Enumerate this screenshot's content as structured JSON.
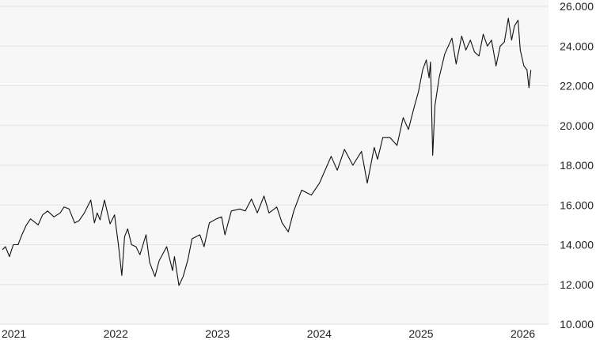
{
  "chart_data": {
    "type": "line",
    "title": "",
    "xlabel": "",
    "ylabel": "",
    "ylim": [
      10000,
      26000
    ],
    "yticks": [
      10000,
      12000,
      14000,
      16000,
      18000,
      20000,
      22000,
      24000,
      26000
    ],
    "ytick_labels": [
      "10.000",
      "12.000",
      "14.000",
      "16.000",
      "18.000",
      "20.000",
      "22.000",
      "24.000",
      "26.000"
    ],
    "xticks": [
      "2021",
      "2022",
      "2023",
      "2024",
      "2025",
      "2026"
    ],
    "xlim": [
      "2021-01-01",
      "2026-05-10"
    ],
    "grid": "horizontal",
    "colors": {
      "line": "#111111",
      "plot_bg": "#f7f7f7",
      "grid": "#e2e2e2"
    },
    "series": [
      {
        "points": [
          [
            "2021-01-04",
            13750
          ],
          [
            "2021-01-15",
            13900
          ],
          [
            "2021-01-29",
            13400
          ],
          [
            "2021-02-12",
            14000
          ],
          [
            "2021-03-01",
            14000
          ],
          [
            "2021-03-15",
            14500
          ],
          [
            "2021-03-31",
            15000
          ],
          [
            "2021-04-15",
            15300
          ],
          [
            "2021-05-12",
            15000
          ],
          [
            "2021-05-28",
            15500
          ],
          [
            "2021-06-15",
            15700
          ],
          [
            "2021-07-08",
            15400
          ],
          [
            "2021-07-30",
            15600
          ],
          [
            "2021-08-13",
            15900
          ],
          [
            "2021-08-31",
            15800
          ],
          [
            "2021-09-20",
            15100
          ],
          [
            "2021-10-05",
            15200
          ],
          [
            "2021-10-25",
            15600
          ],
          [
            "2021-11-17",
            16250
          ],
          [
            "2021-11-30",
            15100
          ],
          [
            "2021-12-10",
            15600
          ],
          [
            "2021-12-20",
            15250
          ],
          [
            "2022-01-05",
            16250
          ],
          [
            "2022-01-25",
            15050
          ],
          [
            "2022-02-10",
            15500
          ],
          [
            "2022-02-24",
            14000
          ],
          [
            "2022-03-08",
            12450
          ],
          [
            "2022-03-18",
            14400
          ],
          [
            "2022-03-29",
            14800
          ],
          [
            "2022-04-12",
            14000
          ],
          [
            "2022-04-28",
            13900
          ],
          [
            "2022-05-12",
            13500
          ],
          [
            "2022-06-03",
            14500
          ],
          [
            "2022-06-16",
            13100
          ],
          [
            "2022-07-05",
            12400
          ],
          [
            "2022-07-20",
            13200
          ],
          [
            "2022-08-16",
            13900
          ],
          [
            "2022-09-06",
            12700
          ],
          [
            "2022-09-13",
            13400
          ],
          [
            "2022-09-29",
            11950
          ],
          [
            "2022-10-14",
            12400
          ],
          [
            "2022-10-31",
            13250
          ],
          [
            "2022-11-15",
            14300
          ],
          [
            "2022-12-13",
            14500
          ],
          [
            "2022-12-28",
            13900
          ],
          [
            "2023-01-16",
            15100
          ],
          [
            "2023-02-10",
            15300
          ],
          [
            "2023-03-01",
            15400
          ],
          [
            "2023-03-13",
            14500
          ],
          [
            "2023-04-05",
            15700
          ],
          [
            "2023-05-05",
            15800
          ],
          [
            "2023-05-25",
            15700
          ],
          [
            "2023-06-16",
            16300
          ],
          [
            "2023-07-07",
            15600
          ],
          [
            "2023-07-31",
            16450
          ],
          [
            "2023-08-18",
            15600
          ],
          [
            "2023-09-15",
            15900
          ],
          [
            "2023-10-04",
            15100
          ],
          [
            "2023-10-26",
            14650
          ],
          [
            "2023-11-15",
            15700
          ],
          [
            "2023-12-13",
            16750
          ],
          [
            "2024-01-17",
            16500
          ],
          [
            "2024-02-15",
            17100
          ],
          [
            "2024-03-08",
            17800
          ],
          [
            "2024-03-28",
            18450
          ],
          [
            "2024-04-19",
            17750
          ],
          [
            "2024-05-15",
            18800
          ],
          [
            "2024-06-14",
            18000
          ],
          [
            "2024-07-15",
            18700
          ],
          [
            "2024-08-05",
            17100
          ],
          [
            "2024-08-30",
            18900
          ],
          [
            "2024-09-11",
            18300
          ],
          [
            "2024-09-30",
            19400
          ],
          [
            "2024-10-25",
            19400
          ],
          [
            "2024-11-20",
            19000
          ],
          [
            "2024-12-12",
            20400
          ],
          [
            "2024-12-31",
            19800
          ],
          [
            "2025-01-20",
            20900
          ],
          [
            "2025-02-05",
            21700
          ],
          [
            "2025-02-20",
            22800
          ],
          [
            "2025-03-05",
            23300
          ],
          [
            "2025-03-15",
            22400
          ],
          [
            "2025-03-20",
            23200
          ],
          [
            "2025-03-28",
            18500
          ],
          [
            "2025-04-05",
            21000
          ],
          [
            "2025-04-20",
            22400
          ],
          [
            "2025-05-10",
            23600
          ],
          [
            "2025-06-05",
            24400
          ],
          [
            "2025-06-20",
            23100
          ],
          [
            "2025-07-10",
            24500
          ],
          [
            "2025-07-25",
            23800
          ],
          [
            "2025-08-10",
            24300
          ],
          [
            "2025-08-25",
            23700
          ],
          [
            "2025-09-10",
            23500
          ],
          [
            "2025-09-25",
            24600
          ],
          [
            "2025-10-10",
            24000
          ],
          [
            "2025-10-25",
            24300
          ],
          [
            "2025-11-10",
            23000
          ],
          [
            "2025-11-25",
            24000
          ],
          [
            "2025-12-10",
            24200
          ],
          [
            "2025-12-24",
            25400
          ],
          [
            "2026-01-05",
            24300
          ],
          [
            "2026-01-15",
            25000
          ],
          [
            "2026-01-28",
            25300
          ],
          [
            "2026-02-05",
            23800
          ],
          [
            "2026-02-18",
            23000
          ],
          [
            "2026-03-01",
            22800
          ],
          [
            "2026-03-08",
            21900
          ],
          [
            "2026-03-15",
            22800
          ]
        ]
      }
    ]
  }
}
